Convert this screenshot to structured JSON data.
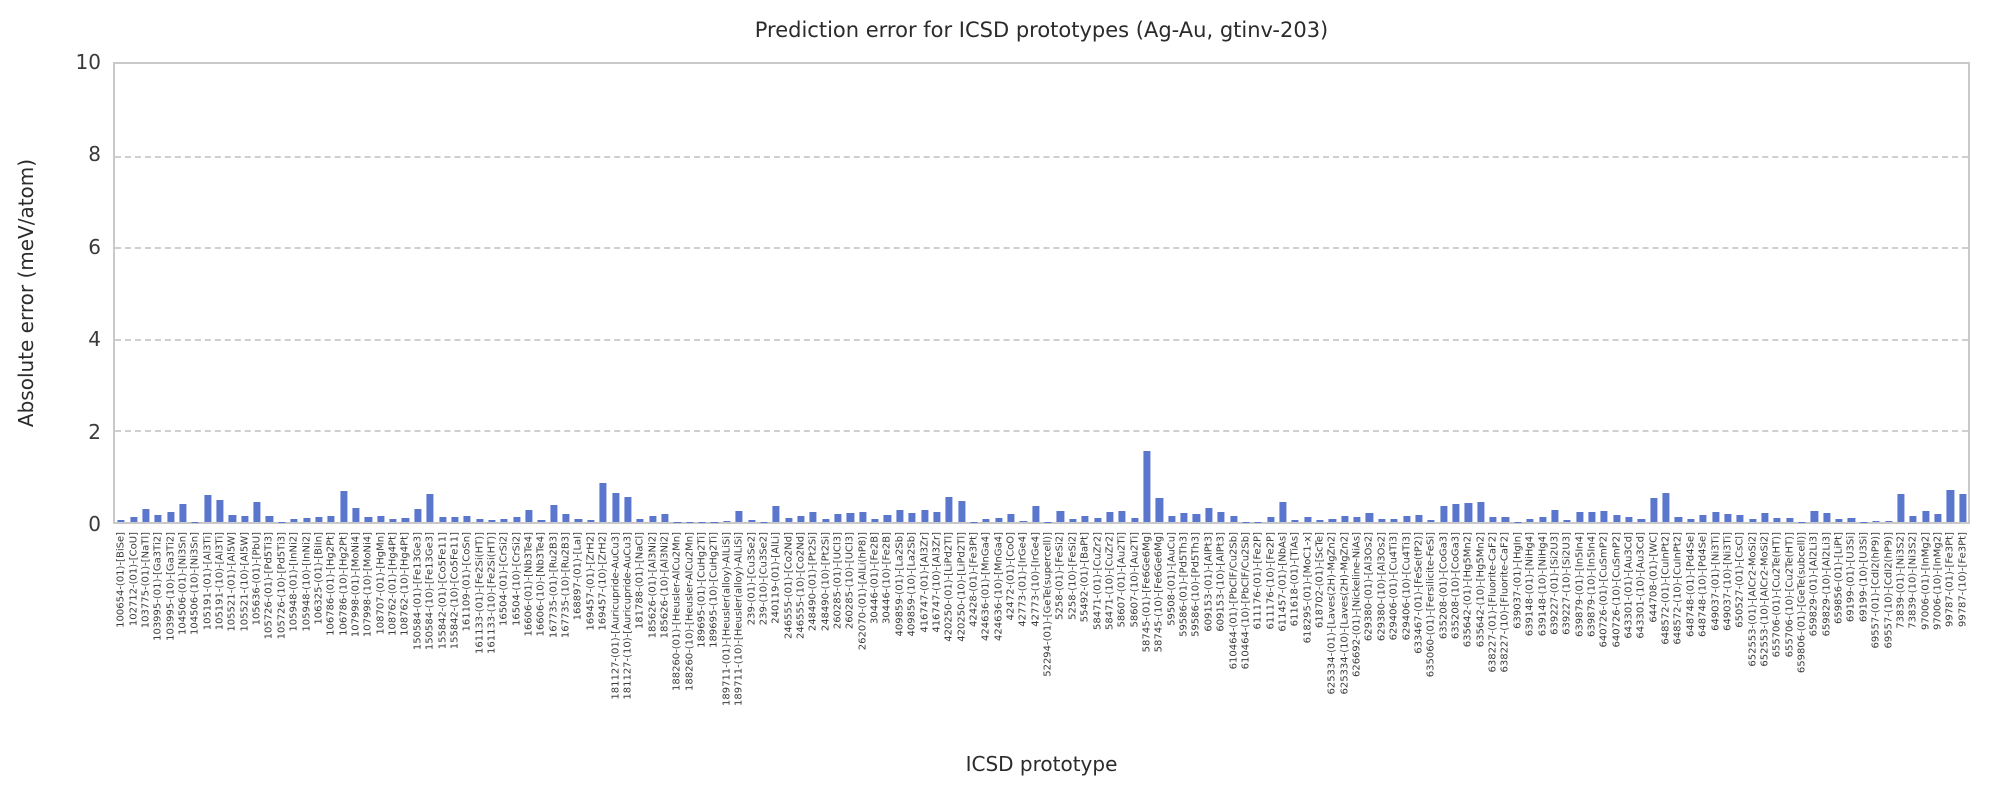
{
  "chart_data": {
    "type": "bar",
    "title": "Prediction error for ICSD prototypes (Ag-Au, gtinv-203)",
    "xlabel": "ICSD prototype",
    "ylabel": "Absolute error (meV/atom)",
    "ylim": [
      0,
      10
    ],
    "yticks": [
      0,
      2,
      4,
      6,
      8,
      10
    ],
    "grid": "dashed horizontal at yticks",
    "legend_position": "none",
    "bar_color": "#5a76cd",
    "categories": [
      "100654-(01)-[BiSe]",
      "102712-(01)-[CoU]",
      "103775-(01)-[NaTl]",
      "103995-(01)-[Ga3Ti2]",
      "103995-(10)-[Ga3Ti2]",
      "104506-(01)-[Ni3Sn]",
      "104506-(10)-[Ni3Sn]",
      "105191-(01)-[Al3Ti]",
      "105191-(10)-[Al3Ti]",
      "105521-(01)-[Al5W]",
      "105521-(10)-[Al5W]",
      "105636-(01)-[PbU]",
      "105726-(01)-[Pd5Ti3]",
      "105726-(10)-[Pd5Ti3]",
      "105948-(01)-[InNi2]",
      "105948-(10)-[InNi2]",
      "106325-(01)-[BiIn]",
      "106786-(01)-[Hg2Pt]",
      "106786-(10)-[Hg2Pt]",
      "107998-(01)-[MoNi4]",
      "107998-(10)-[MoNi4]",
      "108707-(01)-[HgMn]",
      "108762-(01)-[Hg4Pt]",
      "108762-(10)-[Hg4Pt]",
      "150584-(01)-[Fe13Ge3]",
      "150584-(10)-[Fe13Ge3]",
      "155842-(01)-[Co5Fe11]",
      "155842-(10)-[Co5Fe11]",
      "161109-(01)-[CoSn]",
      "161133-(01)-[Fe2Si(HT)]",
      "161133-(10)-[Fe2Si(HT)]",
      "16504-(01)-[CrSi2]",
      "16504-(10)-[CrSi2]",
      "16606-(01)-[Nb3Te4]",
      "16606-(10)-[Nb3Te4]",
      "167735-(01)-[Ru2B3]",
      "167735-(10)-[Ru2B3]",
      "168897-(01)-[LaI]",
      "169457-(01)-[ZrH2]",
      "169457-(10)-[ZrH2]",
      "181127-(01)-[Auricupride-AuCu3]",
      "181127-(10)-[Auricupride-AuCu3]",
      "181788-(01)-[NaCl]",
      "185626-(01)-[Al3Ni2]",
      "185626-(10)-[Al3Ni2]",
      "188260-(01)-[Heusler-AlCu2Mn]",
      "188260-(10)-[Heusler-AlCu2Mn]",
      "189695-(01)-[CuHg2Ti]",
      "189695-(10)-[CuHg2Ti]",
      "189711-(01)-[Heusler(alloy)-AlLiSi]",
      "189711-(10)-[Heusler(alloy)-AlLiSi]",
      "239-(01)-[Cu3Se2]",
      "239-(10)-[Cu3Se2]",
      "240119-(01)-[AlLi]",
      "246555-(01)-[Co2Nd]",
      "246555-(10)-[Co2Nd]",
      "248490-(01)-[Pt2Si]",
      "248490-(10)-[Pt2Si]",
      "260285-(01)-[UCl3]",
      "260285-(10)-[UCl3]",
      "262070-(01)-[AlLi(hP8)]",
      "30446-(01)-[Fe2B]",
      "30446-(10)-[Fe2B]",
      "409859-(01)-[La2Sb]",
      "409859-(10)-[La2Sb]",
      "416747-(01)-[Al3Zr]",
      "416747-(10)-[Al3Zr]",
      "420250-(01)-[LiPd2Tl]",
      "420250-(10)-[LiPd2Tl]",
      "42428-(01)-[Fe3Pt]",
      "424636-(01)-[MnGa4]",
      "424636-(10)-[MnGa4]",
      "42472-(01)-[CoO]",
      "42773-(01)-[IrGe4]",
      "42773-(10)-[IrGe4]",
      "52294-(01)-[GeTe(supercell)]",
      "5258-(01)-[FeSi2]",
      "5258-(10)-[FeSi2]",
      "55492-(01)-[BaPt]",
      "58471-(01)-[CuZr2]",
      "58471-(10)-[CuZr2]",
      "58607-(01)-[Au2Ti]",
      "58607-(10)-[Au2Ti]",
      "58745-(01)-[Fe6Ge6Mg]",
      "58745-(10)-[Fe6Ge6Mg]",
      "59508-(01)-[AuCu]",
      "59586-(01)-[Pd5Th3]",
      "59586-(10)-[Pd5Th3]",
      "609153-(01)-[AlPt3]",
      "609153-(10)-[AlPt3]",
      "610464-(01)-[PbClF/Cu2Sb]",
      "610464-(10)-[PbClF/Cu2Sb]",
      "611176-(01)-[Fe2P]",
      "611176-(10)-[Fe2P]",
      "611457-(01)-[NbAs]",
      "611618-(01)-[TiAs]",
      "618295-(01)-[MoC1-x]",
      "618702-(01)-[ScTe]",
      "625334-(01)-[Laves(2H)-MgZn2]",
      "625334-(10)-[Laves(2H)-MgZn2]",
      "626692-(01)-[Nickeline-NiAs]",
      "629380-(01)-[Al3Os2]",
      "629380-(10)-[Al3Os2]",
      "629406-(01)-[Cu4Ti3]",
      "629406-(10)-[Cu4Ti3]",
      "633467-(01)-[FeSe(tP2)]",
      "635060-(01)-[Fersilicite-FeSi]",
      "635208-(01)-[CoGa3]",
      "635208-(10)-[CoGa3]",
      "635642-(01)-[Hg5Mn2]",
      "635642-(10)-[Hg5Mn2]",
      "638227-(01)-[Fluorite-CaF2]",
      "638227-(10)-[Fluorite-CaF2]",
      "639037-(01)-[HgIn]",
      "639148-(01)-[NiHg4]",
      "639148-(10)-[NiHg4]",
      "639227-(01)-[Si2U3]",
      "639227-(10)-[Si2U3]",
      "639879-(01)-[In5In4]",
      "639879-(10)-[In5In4]",
      "640726-(01)-[CuSmP2]",
      "640726-(10)-[CuSmP2]",
      "643301-(01)-[Au3Cd]",
      "643301-(10)-[Au3Cd]",
      "644708-(01)-[WC]",
      "648572-(01)-[CuInPt2]",
      "648572-(10)-[CuInPt2]",
      "648748-(01)-[Pd4Se]",
      "648748-(10)-[Pd4Se]",
      "649037-(01)-[Ni3Ti]",
      "649037-(10)-[Ni3Ti]",
      "650527-(01)-[CsCl]",
      "652553-(01)-[AlCr2-MoSi2]",
      "652553-(10)-[AlCr2-MoSi2]",
      "655706-(01)-[Cu2Te(HT)]",
      "655706-(10)-[Cu2Te(HT)]",
      "659806-(01)-[GeTe(subcell)]",
      "659829-(01)-[Al2Li3]",
      "659829-(10)-[Al2Li3]",
      "659856-(01)-[LiPt]",
      "69199-(01)-[U3Si]",
      "69199-(10)-[U3Si]",
      "69557-(01)-[CdI2(hP9)]",
      "69557-(10)-[CdI2(hP9)]",
      "73839-(01)-[Ni3S2]",
      "73839-(10)-[Ni3S2]",
      "97006-(01)-[InMg2]",
      "97006-(10)-[InMg2]",
      "99787-(01)-[Fe3Pt]",
      "99787-(10)-[Fe3Pt]"
    ],
    "values": [
      0.04,
      0.1,
      0.28,
      0.16,
      0.21,
      0.39,
      0.01,
      0.6,
      0.48,
      0.16,
      0.13,
      0.44,
      0.13,
      0.01,
      0.07,
      0.09,
      0.1,
      0.14,
      0.67,
      0.3,
      0.1,
      0.13,
      0.06,
      0.09,
      0.28,
      0.62,
      0.11,
      0.11,
      0.14,
      0.07,
      0.04,
      0.06,
      0.1,
      0.27,
      0.04,
      0.37,
      0.18,
      0.07,
      0.04,
      0.85,
      0.64,
      0.55,
      0.07,
      0.14,
      0.18,
      0.01,
      0.01,
      0.01,
      0.01,
      0.03,
      0.25,
      0.04,
      0.01,
      0.34,
      0.09,
      0.14,
      0.21,
      0.06,
      0.18,
      0.2,
      0.21,
      0.06,
      0.16,
      0.27,
      0.2,
      0.27,
      0.21,
      0.55,
      0.46,
      0.01,
      0.07,
      0.09,
      0.18,
      0.03,
      0.34,
      0.01,
      0.25,
      0.07,
      0.13,
      0.09,
      0.21,
      0.25,
      0.09,
      1.55,
      0.53,
      0.13,
      0.2,
      0.18,
      0.3,
      0.21,
      0.14,
      0.01,
      0.01,
      0.11,
      0.44,
      0.04,
      0.11,
      0.04,
      0.06,
      0.14,
      0.1,
      0.2,
      0.07,
      0.07,
      0.14,
      0.16,
      0.04,
      0.34,
      0.39,
      0.41,
      0.43,
      0.1,
      0.11,
      0.01,
      0.06,
      0.1,
      0.27,
      0.04,
      0.21,
      0.21,
      0.23,
      0.16,
      0.1,
      0.06,
      0.53,
      0.64,
      0.1,
      0.07,
      0.16,
      0.21,
      0.18,
      0.16,
      0.06,
      0.2,
      0.09,
      0.09,
      0.01,
      0.25,
      0.2,
      0.07,
      0.09,
      0.01,
      0.03,
      0.03,
      0.62,
      0.13,
      0.25,
      0.18,
      0.7,
      0.62
    ]
  }
}
